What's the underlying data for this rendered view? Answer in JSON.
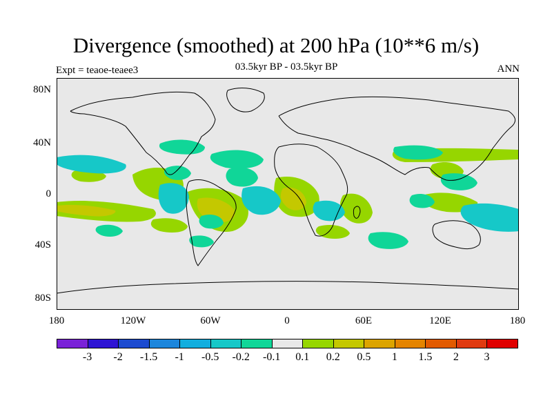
{
  "title": "Divergence (smoothed) at 200 hPa (10**6 m/s)",
  "subtitle": "03.5kyr BP - 03.5kyr BP",
  "left_title": "Expt = teaoe-teaee3",
  "right_title": "ANN",
  "y_axis_labels": [
    "80N",
    "40N",
    "0",
    "40S",
    "80S"
  ],
  "x_axis_labels": [
    "180",
    "120W",
    "60W",
    "0",
    "60E",
    "120E",
    "180"
  ],
  "colorbar": {
    "labels": [
      "-3",
      "-2",
      "-1.5",
      "-1",
      "-0.5",
      "-0.2",
      "-0.1",
      "0.1",
      "0.2",
      "0.5",
      "1",
      "1.5",
      "2",
      "3"
    ],
    "colors": [
      "#7a22d8",
      "#2e14d4",
      "#1c4bd0",
      "#1c86dc",
      "#12aede",
      "#16c8c8",
      "#10d698",
      "#e8e8e8",
      "#96d600",
      "#c4c800",
      "#dca400",
      "#e48400",
      "#e25a00",
      "#e03a10",
      "#e00000"
    ]
  },
  "field_colors": {
    "background": "#e8e8e8",
    "neg_weak": "#10d698",
    "neg_mid": "#16c8c8",
    "neg_strong": "#12aede",
    "pos_weak": "#96d600",
    "pos_mid": "#c4c800",
    "pos_strong": "#dca400"
  }
}
